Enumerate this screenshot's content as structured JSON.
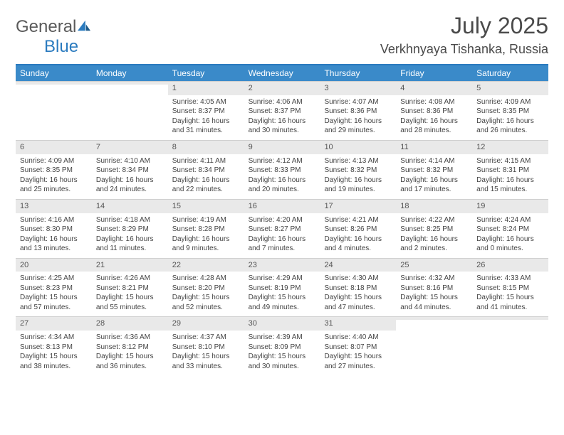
{
  "brand": {
    "name_a": "General",
    "name_b": "Blue"
  },
  "title": "July 2025",
  "location": "Verkhnyaya Tishanka, Russia",
  "colors": {
    "header_bg": "#3a8ac9",
    "header_border": "#2b7bbf",
    "daynum_bg": "#e9e9e9",
    "text": "#444444"
  },
  "day_names": [
    "Sunday",
    "Monday",
    "Tuesday",
    "Wednesday",
    "Thursday",
    "Friday",
    "Saturday"
  ],
  "weeks": [
    [
      null,
      null,
      {
        "n": "1",
        "sr": "4:05 AM",
        "ss": "8:37 PM",
        "dl": "16 hours and 31 minutes."
      },
      {
        "n": "2",
        "sr": "4:06 AM",
        "ss": "8:37 PM",
        "dl": "16 hours and 30 minutes."
      },
      {
        "n": "3",
        "sr": "4:07 AM",
        "ss": "8:36 PM",
        "dl": "16 hours and 29 minutes."
      },
      {
        "n": "4",
        "sr": "4:08 AM",
        "ss": "8:36 PM",
        "dl": "16 hours and 28 minutes."
      },
      {
        "n": "5",
        "sr": "4:09 AM",
        "ss": "8:35 PM",
        "dl": "16 hours and 26 minutes."
      }
    ],
    [
      {
        "n": "6",
        "sr": "4:09 AM",
        "ss": "8:35 PM",
        "dl": "16 hours and 25 minutes."
      },
      {
        "n": "7",
        "sr": "4:10 AM",
        "ss": "8:34 PM",
        "dl": "16 hours and 24 minutes."
      },
      {
        "n": "8",
        "sr": "4:11 AM",
        "ss": "8:34 PM",
        "dl": "16 hours and 22 minutes."
      },
      {
        "n": "9",
        "sr": "4:12 AM",
        "ss": "8:33 PM",
        "dl": "16 hours and 20 minutes."
      },
      {
        "n": "10",
        "sr": "4:13 AM",
        "ss": "8:32 PM",
        "dl": "16 hours and 19 minutes."
      },
      {
        "n": "11",
        "sr": "4:14 AM",
        "ss": "8:32 PM",
        "dl": "16 hours and 17 minutes."
      },
      {
        "n": "12",
        "sr": "4:15 AM",
        "ss": "8:31 PM",
        "dl": "16 hours and 15 minutes."
      }
    ],
    [
      {
        "n": "13",
        "sr": "4:16 AM",
        "ss": "8:30 PM",
        "dl": "16 hours and 13 minutes."
      },
      {
        "n": "14",
        "sr": "4:18 AM",
        "ss": "8:29 PM",
        "dl": "16 hours and 11 minutes."
      },
      {
        "n": "15",
        "sr": "4:19 AM",
        "ss": "8:28 PM",
        "dl": "16 hours and 9 minutes."
      },
      {
        "n": "16",
        "sr": "4:20 AM",
        "ss": "8:27 PM",
        "dl": "16 hours and 7 minutes."
      },
      {
        "n": "17",
        "sr": "4:21 AM",
        "ss": "8:26 PM",
        "dl": "16 hours and 4 minutes."
      },
      {
        "n": "18",
        "sr": "4:22 AM",
        "ss": "8:25 PM",
        "dl": "16 hours and 2 minutes."
      },
      {
        "n": "19",
        "sr": "4:24 AM",
        "ss": "8:24 PM",
        "dl": "16 hours and 0 minutes."
      }
    ],
    [
      {
        "n": "20",
        "sr": "4:25 AM",
        "ss": "8:23 PM",
        "dl": "15 hours and 57 minutes."
      },
      {
        "n": "21",
        "sr": "4:26 AM",
        "ss": "8:21 PM",
        "dl": "15 hours and 55 minutes."
      },
      {
        "n": "22",
        "sr": "4:28 AM",
        "ss": "8:20 PM",
        "dl": "15 hours and 52 minutes."
      },
      {
        "n": "23",
        "sr": "4:29 AM",
        "ss": "8:19 PM",
        "dl": "15 hours and 49 minutes."
      },
      {
        "n": "24",
        "sr": "4:30 AM",
        "ss": "8:18 PM",
        "dl": "15 hours and 47 minutes."
      },
      {
        "n": "25",
        "sr": "4:32 AM",
        "ss": "8:16 PM",
        "dl": "15 hours and 44 minutes."
      },
      {
        "n": "26",
        "sr": "4:33 AM",
        "ss": "8:15 PM",
        "dl": "15 hours and 41 minutes."
      }
    ],
    [
      {
        "n": "27",
        "sr": "4:34 AM",
        "ss": "8:13 PM",
        "dl": "15 hours and 38 minutes."
      },
      {
        "n": "28",
        "sr": "4:36 AM",
        "ss": "8:12 PM",
        "dl": "15 hours and 36 minutes."
      },
      {
        "n": "29",
        "sr": "4:37 AM",
        "ss": "8:10 PM",
        "dl": "15 hours and 33 minutes."
      },
      {
        "n": "30",
        "sr": "4:39 AM",
        "ss": "8:09 PM",
        "dl": "15 hours and 30 minutes."
      },
      {
        "n": "31",
        "sr": "4:40 AM",
        "ss": "8:07 PM",
        "dl": "15 hours and 27 minutes."
      },
      null,
      null
    ]
  ],
  "labels": {
    "sunrise": "Sunrise:",
    "sunset": "Sunset:",
    "daylight": "Daylight:"
  }
}
